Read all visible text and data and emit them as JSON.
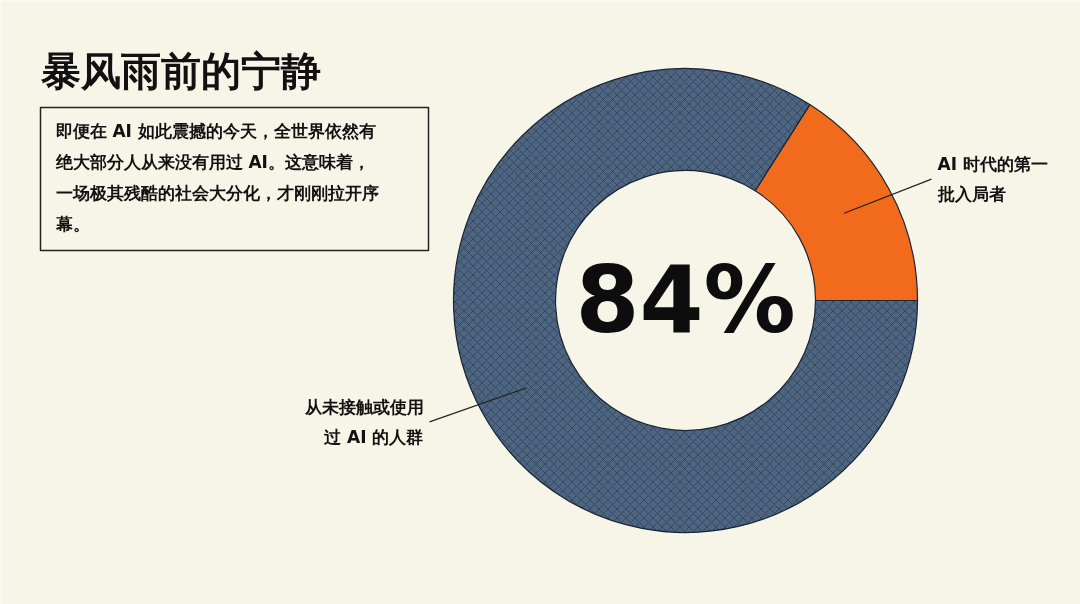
{
  "chart_data": {
    "type": "donut",
    "title": "暴风雨前的宁静",
    "annotations": [
      "即便在 AI 如此震撼的今天，全世界依然有绝大部分人从来没有用过 AI。这意味着，一场极其残酷的社会大分化，才刚刚拉开序幕。"
    ],
    "categories": [
      "从未接触或使用过 AI 的人群",
      "AI 时代的第一批入局者"
    ],
    "values": [
      84,
      16
    ],
    "colors": [
      "#4d6580",
      "#f26a1b"
    ],
    "value_labels": [
      "84%",
      null
    ]
  }
}
